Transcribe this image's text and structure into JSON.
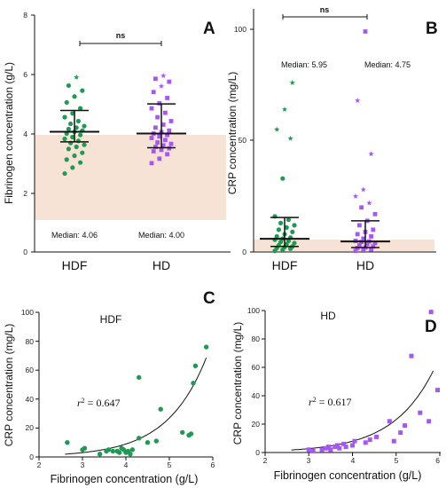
{
  "colors": {
    "hdf": "#1e9a52",
    "hd": "#a855f7",
    "shade": "#f6e3d6",
    "black": "#111111"
  },
  "chart_data": [
    {
      "panel": "A",
      "type": "scatter",
      "ylabel": "Fibrinogen concentration (g/L)",
      "ylim": [
        0,
        8
      ],
      "yticks": [
        "0",
        "2",
        "4",
        "6",
        "8"
      ],
      "categories": [
        "HDF",
        "HD"
      ],
      "reference_band": [
        1,
        4
      ],
      "significance": "ns",
      "median_labels": [
        "Median: 4.06",
        "Median: 4.00"
      ],
      "summary": [
        {
          "median": 4.06,
          "q1": 3.72,
          "q3": 4.78
        },
        {
          "median": 4.0,
          "q1": 3.52,
          "q3": 5.0
        }
      ],
      "series": [
        {
          "values": [
            2.65,
            2.85,
            3.02,
            3.12,
            3.25,
            3.35,
            3.48,
            3.55,
            3.62,
            3.68,
            3.75,
            3.82,
            3.88,
            3.95,
            4.0,
            4.06,
            4.1,
            4.15,
            4.2,
            4.25,
            4.33,
            4.42,
            4.55,
            4.68,
            4.85,
            5.05,
            5.25,
            5.45,
            5.62,
            5.9
          ],
          "outliers": [
            5.4,
            5.55,
            5.9
          ]
        },
        {
          "values": [
            3.0,
            3.15,
            3.3,
            3.4,
            3.45,
            3.5,
            3.55,
            3.6,
            3.65,
            3.7,
            3.78,
            3.85,
            3.9,
            3.95,
            4.0,
            4.05,
            4.1,
            4.2,
            4.3,
            4.42,
            4.55,
            4.7,
            4.85,
            5.02,
            5.2,
            5.4,
            5.6,
            5.75,
            5.85,
            5.95
          ],
          "outliers": [
            5.45,
            5.6,
            5.95
          ]
        }
      ]
    },
    {
      "panel": "B",
      "type": "scatter",
      "ylabel": "CRP concentration (mg/L)",
      "ylim": [
        0,
        105
      ],
      "yticks": [
        "0",
        "50",
        "100"
      ],
      "categories": [
        "HDF",
        "HD"
      ],
      "reference_band": [
        0,
        5
      ],
      "significance": "ns",
      "median_labels": [
        "Median: 5.95",
        "Median: 4.75"
      ],
      "summary": [
        {
          "median": 5.95,
          "q1": 2.5,
          "q3": 15.5
        },
        {
          "median": 4.75,
          "q1": 2.0,
          "q3": 14.0
        }
      ],
      "series": [
        {
          "values": [
            0.5,
            1.0,
            1.5,
            1.8,
            2.2,
            2.5,
            3.0,
            3.5,
            4.0,
            4.5,
            5.0,
            5.5,
            6.0,
            6.5,
            7.0,
            8.0,
            9.0,
            10.0,
            11.0,
            12.0,
            13.0,
            14.5,
            16.0,
            33.0,
            51.0,
            55.0,
            64.0,
            76.0
          ],
          "outliers": [
            51.0,
            55.0,
            64.0,
            76.0
          ]
        },
        {
          "values": [
            0.5,
            1.0,
            1.2,
            1.8,
            2.0,
            2.5,
            3.0,
            3.5,
            4.0,
            4.5,
            4.75,
            5.0,
            6.0,
            7.0,
            8.0,
            9.0,
            10.0,
            12.0,
            14.0,
            17.0,
            20.0,
            22.0,
            25.0,
            28.0,
            44.0,
            68.0,
            99.0
          ],
          "outliers": [
            22.0,
            25.0,
            28.0,
            44.0,
            68.0
          ]
        }
      ]
    },
    {
      "panel": "C",
      "type": "scatter",
      "title": "HDF",
      "xlabel": "Fibrinogen concentration (g/L)",
      "ylabel": "CRP concentration (mg/L)",
      "xlim": [
        2,
        6
      ],
      "ylim": [
        0,
        100
      ],
      "xticks": [
        "2",
        "3",
        "4",
        "5",
        "6"
      ],
      "yticks": [
        "0",
        "20",
        "40",
        "60",
        "80",
        "100"
      ],
      "r2_value": "= 0.647",
      "points": [
        [
          2.65,
          10
        ],
        [
          3.0,
          5
        ],
        [
          3.05,
          6
        ],
        [
          3.4,
          2
        ],
        [
          3.55,
          4
        ],
        [
          3.6,
          5
        ],
        [
          3.7,
          4
        ],
        [
          3.8,
          4
        ],
        [
          3.85,
          3
        ],
        [
          3.9,
          6
        ],
        [
          3.95,
          5
        ],
        [
          4.0,
          3
        ],
        [
          4.05,
          4
        ],
        [
          4.1,
          2
        ],
        [
          4.15,
          5
        ],
        [
          4.3,
          13
        ],
        [
          4.3,
          55
        ],
        [
          4.5,
          10
        ],
        [
          4.7,
          11
        ],
        [
          4.8,
          33
        ],
        [
          5.3,
          17
        ],
        [
          5.45,
          15
        ],
        [
          5.5,
          16
        ],
        [
          5.55,
          51
        ],
        [
          5.6,
          63
        ],
        [
          5.85,
          76
        ]
      ],
      "fit": {
        "a": 0.11,
        "b": 1.1
      }
    },
    {
      "panel": "D",
      "type": "scatter",
      "title": "HD",
      "xlabel": "Fibrinogen concentration (g/L)",
      "ylabel": "CRP concentration (mg/L)",
      "xlim": [
        2,
        6
      ],
      "ylim": [
        0,
        100
      ],
      "xticks": [
        "2",
        "3",
        "4",
        "5",
        "6"
      ],
      "yticks": [
        "0",
        "20",
        "40",
        "60",
        "80",
        "100"
      ],
      "r2_value": "= 0.617",
      "points": [
        [
          3.0,
          2
        ],
        [
          3.1,
          1
        ],
        [
          3.3,
          2
        ],
        [
          3.4,
          3
        ],
        [
          3.45,
          4
        ],
        [
          3.5,
          2
        ],
        [
          3.6,
          4
        ],
        [
          3.65,
          5
        ],
        [
          3.7,
          3
        ],
        [
          3.8,
          6
        ],
        [
          3.85,
          4
        ],
        [
          4.0,
          5
        ],
        [
          4.05,
          8
        ],
        [
          4.3,
          7
        ],
        [
          4.4,
          9
        ],
        [
          4.55,
          11
        ],
        [
          4.85,
          22
        ],
        [
          4.95,
          8
        ],
        [
          5.1,
          14
        ],
        [
          5.2,
          19
        ],
        [
          5.35,
          68
        ],
        [
          5.55,
          28
        ],
        [
          5.75,
          22
        ],
        [
          5.8,
          99
        ],
        [
          5.95,
          44
        ]
      ],
      "fit": {
        "a": 0.11,
        "b": 1.07
      }
    }
  ]
}
